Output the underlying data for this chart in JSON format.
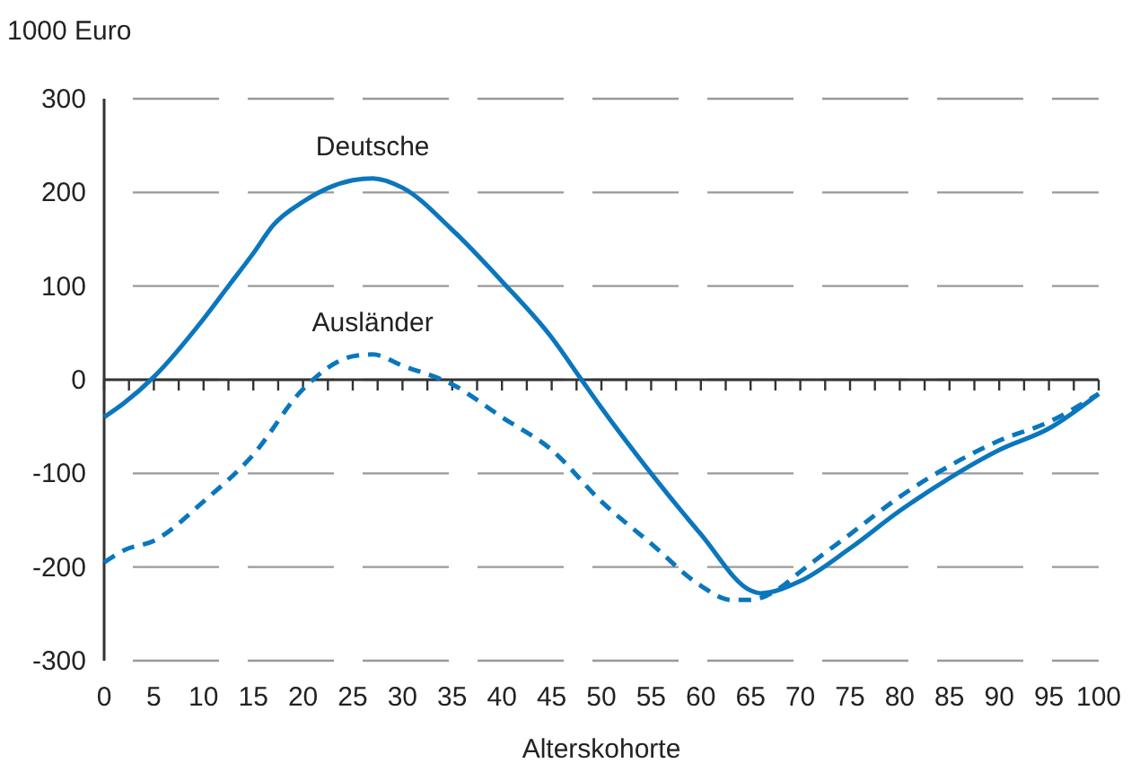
{
  "chart_data": {
    "type": "line",
    "ylabel": "1000 Euro",
    "xlabel": "Alterskohorte",
    "xlim": [
      0,
      100
    ],
    "xticks": [
      0,
      {
        "value": 2.5,
        "label": null
      },
      5,
      {
        "value": 7.5,
        "label": null
      },
      10,
      {
        "value": 12.5,
        "label": null
      },
      15,
      {
        "value": 17.5,
        "label": null
      },
      20,
      {
        "value": 22.5,
        "label": null
      },
      25,
      {
        "value": 27.5,
        "label": null
      },
      30,
      {
        "value": 32.5,
        "label": null
      },
      35,
      {
        "value": 37.5,
        "label": null
      },
      40,
      {
        "value": 42.5,
        "label": null
      },
      45,
      {
        "value": 47.5,
        "label": null
      },
      50,
      {
        "value": 52.5,
        "label": null
      },
      55,
      {
        "value": 57.5,
        "label": null
      },
      60,
      {
        "value": 62.5,
        "label": null
      },
      65,
      {
        "value": 67.5,
        "label": null
      },
      70,
      {
        "value": 72.5,
        "label": null
      },
      75,
      {
        "value": 77.5,
        "label": null
      },
      80,
      {
        "value": 82.5,
        "label": null
      },
      85,
      {
        "value": 87.5,
        "label": null
      },
      90,
      {
        "value": 92.5,
        "label": null
      },
      95,
      {
        "value": 97.5,
        "label": null
      },
      100
    ],
    "ylim": [
      -300,
      300
    ],
    "yticks": [
      -300,
      -200,
      -100,
      0,
      100,
      200,
      300
    ],
    "grid": "y",
    "series": [
      {
        "name": "Deutsche",
        "color": "#0a77bd",
        "line_style": "solid",
        "x": [
          0,
          2,
          5,
          10,
          12.5,
          15,
          17,
          20,
          25,
          27,
          30,
          35,
          40,
          45,
          48,
          50,
          55,
          60,
          65,
          66,
          70,
          75,
          80,
          85,
          90,
          95,
          100
        ],
        "values": [
          -40,
          -25,
          3,
          65,
          100,
          135,
          165,
          190,
          213,
          215,
          205,
          160,
          105,
          45,
          0,
          -30,
          -100,
          -165,
          -225,
          -228,
          -215,
          -180,
          -140,
          -105,
          -75,
          -52,
          -15
        ]
      },
      {
        "name": "Ausländer",
        "color": "#0a77bd",
        "line_style": "dashed",
        "x": [
          0,
          2,
          5,
          10,
          15,
          20,
          25,
          27,
          30,
          35,
          40,
          45,
          50,
          55,
          60,
          63,
          65,
          68,
          70,
          75,
          80,
          85,
          90,
          95,
          100
        ],
        "values": [
          -195,
          -182,
          -172,
          -130,
          -80,
          -10,
          25,
          27,
          15,
          -5,
          -40,
          -75,
          -130,
          -175,
          -220,
          -235,
          -235,
          -222,
          -205,
          -165,
          -125,
          -92,
          -65,
          -45,
          -15
        ]
      }
    ]
  }
}
